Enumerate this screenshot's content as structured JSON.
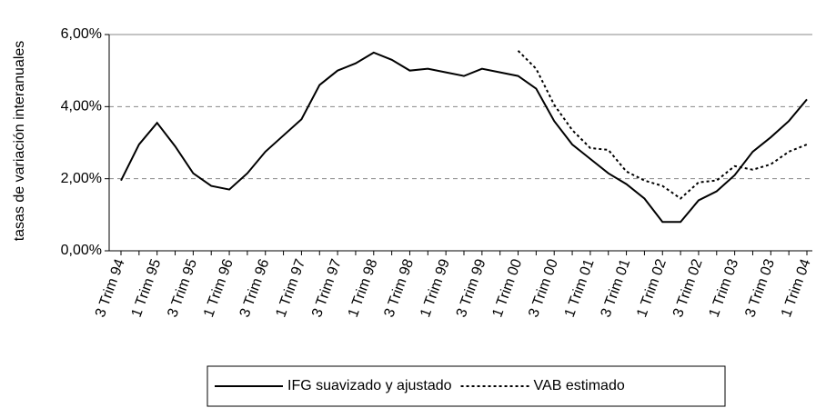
{
  "chart_data": {
    "type": "line",
    "y_label": "tasas de variación interanuales",
    "categories": [
      "3 Trim 94",
      null,
      "1 Trim 95",
      null,
      "3 Trim 95",
      null,
      "1 Trim 96",
      null,
      "3 Trim 96",
      null,
      "1 Trim 97",
      null,
      "3 Trim 97",
      null,
      "1 Trim 98",
      null,
      "3 Trim 98",
      null,
      "1 Trim 99",
      null,
      "3 Trim 99",
      null,
      "1 Trim 00",
      null,
      "3 Trim 00",
      null,
      "1 Trim 01",
      null,
      "3 Trim 01",
      null,
      "1 Trim 02",
      null,
      "3 Trim 02",
      null,
      "1 Trim 03",
      null,
      "3 Trim 03",
      null,
      "1 Trim 04"
    ],
    "series": [
      {
        "name": "IFG suavizado y ajustado",
        "color": "#000000",
        "dash": "solid",
        "values": [
          1.95,
          2.95,
          3.55,
          2.9,
          2.15,
          1.8,
          1.7,
          2.15,
          2.75,
          3.2,
          3.65,
          4.6,
          5.0,
          5.2,
          5.5,
          5.3,
          5.0,
          5.05,
          4.95,
          4.85,
          5.05,
          4.95,
          4.85,
          4.5,
          3.6,
          2.95,
          2.55,
          2.15,
          1.85,
          1.45,
          0.8,
          0.8,
          1.4,
          1.65,
          2.1,
          2.75,
          3.15,
          3.6,
          4.2
        ]
      },
      {
        "name": "VAB estimado",
        "color": "#000000",
        "dash": "dotted",
        "values": [
          null,
          null,
          null,
          null,
          null,
          null,
          null,
          null,
          null,
          null,
          null,
          null,
          null,
          null,
          null,
          null,
          null,
          null,
          null,
          null,
          null,
          null,
          5.55,
          5.05,
          4.05,
          3.35,
          2.85,
          2.8,
          2.2,
          1.95,
          1.8,
          1.45,
          1.9,
          1.95,
          2.35,
          2.25,
          2.4,
          2.75,
          2.95
        ]
      }
    ],
    "ylim": [
      0,
      6
    ],
    "yticks": [
      {
        "value": 0,
        "label": "0,00%"
      },
      {
        "value": 2,
        "label": "2,00%"
      },
      {
        "value": 4,
        "label": "4,00%"
      },
      {
        "value": 6,
        "label": "6,00%"
      }
    ],
    "grid": true,
    "legend": "bottom"
  }
}
